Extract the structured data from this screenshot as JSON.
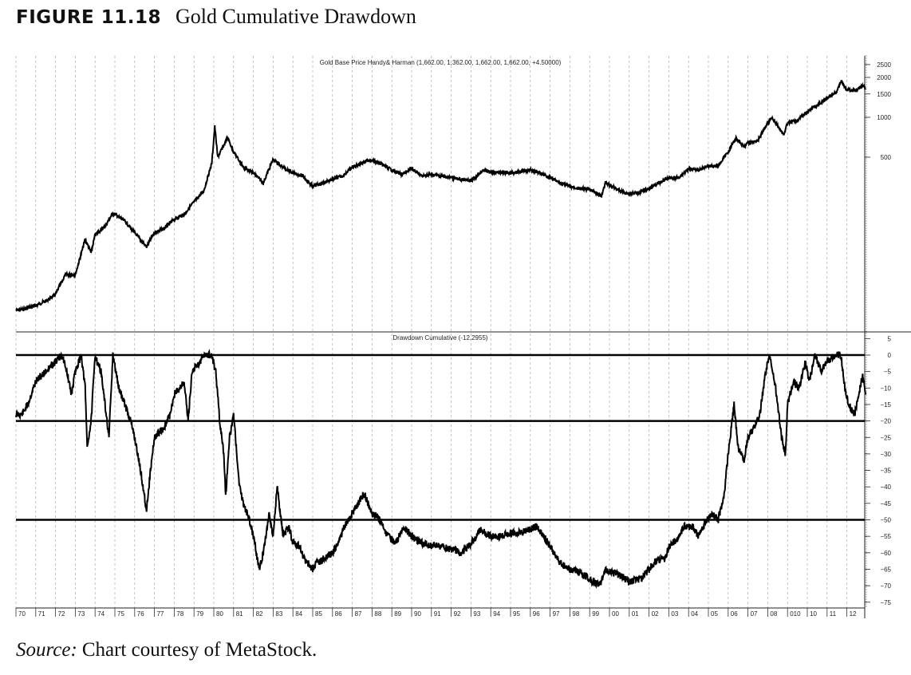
{
  "figure": {
    "number": "FIGURE 11.18",
    "title": "Gold Cumulative Drawdown"
  },
  "source": {
    "label": "Source:",
    "text": "Chart courtesy of MetaStock."
  },
  "chart_data": [
    {
      "type": "line",
      "title": "Gold Base Price Handy& Harman (1,662.00, 1,362.00, 1,662.00, 1,662.00, +4.50000)",
      "yscale": "log",
      "ylim": [
        30,
        2700
      ],
      "yticks": [
        2500,
        2000,
        1500,
        1000,
        500
      ],
      "grid": "vertical dashed per year",
      "series": [
        {
          "name": "Gold price",
          "x": [
            1970.0,
            1970.5,
            1971.0,
            1971.5,
            1972.0,
            1972.5,
            1973.0,
            1973.5,
            1973.8,
            1974.0,
            1974.5,
            1974.9,
            1975.5,
            1976.0,
            1976.6,
            1977.0,
            1977.5,
            1978.0,
            1978.5,
            1979.0,
            1979.5,
            1979.9,
            1980.05,
            1980.2,
            1980.7,
            1981.0,
            1981.5,
            1982.0,
            1982.5,
            1983.0,
            1983.5,
            1984.0,
            1984.5,
            1985.0,
            1985.5,
            1986.0,
            1986.5,
            1987.0,
            1987.9,
            1988.5,
            1989.0,
            1989.5,
            1990.0,
            1990.5,
            1991.0,
            1991.5,
            1992.0,
            1992.5,
            1993.0,
            1993.6,
            1994.0,
            1995.0,
            1996.0,
            1996.5,
            1997.0,
            1997.5,
            1998.0,
            1998.5,
            1999.0,
            1999.6,
            1999.8,
            2000.5,
            2001.0,
            2001.5,
            2002.0,
            2002.5,
            2003.0,
            2003.5,
            2004.0,
            2004.5,
            2005.0,
            2005.5,
            2006.0,
            2006.4,
            2006.8,
            2007.0,
            2007.5,
            2008.0,
            2008.2,
            2008.8,
            2009.0,
            2009.5,
            2010.0,
            2010.5,
            2011.0,
            2011.5,
            2011.7,
            2012.0,
            2012.5,
            2012.8,
            2012.95
          ],
          "y": [
            35,
            36,
            38,
            41,
            46,
            65,
            65,
            120,
            95,
            130,
            150,
            190,
            165,
            135,
            105,
            135,
            145,
            170,
            185,
            230,
            280,
            450,
            850,
            500,
            700,
            550,
            420,
            380,
            320,
            480,
            420,
            380,
            360,
            300,
            320,
            340,
            360,
            420,
            480,
            440,
            400,
            370,
            410,
            360,
            370,
            360,
            350,
            340,
            330,
            400,
            385,
            380,
            400,
            380,
            350,
            320,
            300,
            290,
            285,
            255,
            320,
            280,
            265,
            270,
            290,
            320,
            350,
            350,
            410,
            400,
            430,
            430,
            550,
            700,
            600,
            640,
            670,
            900,
            1000,
            740,
            900,
            950,
            1100,
            1230,
            1400,
            1550,
            1880,
            1600,
            1600,
            1750,
            1660
          ]
        }
      ]
    },
    {
      "type": "line",
      "title": "Drawdown Cumulative (-12.2955)",
      "ylim": [
        -77,
        6
      ],
      "yticks": [
        5,
        0,
        -5,
        -10,
        -15,
        -20,
        -25,
        -30,
        -35,
        -40,
        -45,
        -50,
        -55,
        -60,
        -65,
        -70,
        -75
      ],
      "reference_lines": [
        0,
        -20,
        -50
      ],
      "series": [
        {
          "name": "Drawdown",
          "x": [
            1970.0,
            1970.3,
            1970.6,
            1971.0,
            1971.5,
            1972.0,
            1972.3,
            1972.5,
            1972.8,
            1973.0,
            1973.3,
            1973.5,
            1973.6,
            1973.8,
            1974.0,
            1974.3,
            1974.5,
            1974.7,
            1974.9,
            1975.2,
            1975.5,
            1975.8,
            1976.0,
            1976.3,
            1976.6,
            1976.8,
            1977.0,
            1977.5,
            1977.8,
            1978.0,
            1978.5,
            1978.7,
            1978.9,
            1979.3,
            1979.5,
            1979.9,
            1980.1,
            1980.3,
            1980.5,
            1980.6,
            1980.8,
            1981.0,
            1981.3,
            1981.5,
            1981.8,
            1982.0,
            1982.3,
            1982.5,
            1982.8,
            1983.0,
            1983.2,
            1983.5,
            1983.8,
            1984.0,
            1984.3,
            1984.6,
            1985.0,
            1985.2,
            1985.5,
            1986.0,
            1986.3,
            1986.6,
            1987.0,
            1987.3,
            1987.6,
            1988.0,
            1988.4,
            1988.8,
            1989.2,
            1989.6,
            1990.0,
            1990.5,
            1991.0,
            1991.5,
            1992.0,
            1992.5,
            1992.9,
            1993.5,
            1994.0,
            1994.5,
            1995.0,
            1995.5,
            1996.0,
            1996.3,
            1996.8,
            1997.0,
            1997.5,
            1998.0,
            1998.5,
            1999.0,
            1999.5,
            1999.8,
            2000.2,
            2000.6,
            2001.0,
            2001.3,
            2001.6,
            2002.0,
            2002.4,
            2002.8,
            2003.0,
            2003.4,
            2003.8,
            2004.2,
            2004.5,
            2004.8,
            2005.2,
            2005.5,
            2005.8,
            2006.0,
            2006.3,
            2006.5,
            2006.8,
            2007.0,
            2007.3,
            2007.6,
            2007.9,
            2008.1,
            2008.4,
            2008.7,
            2008.9,
            2009.0,
            2009.3,
            2009.6,
            2009.9,
            2010.1,
            2010.4,
            2010.7,
            2011.0,
            2011.4,
            2011.7,
            2011.9,
            2012.1,
            2012.4,
            2012.6,
            2012.8,
            2012.95
          ],
          "y": [
            -18,
            -18,
            -15,
            -8,
            -5,
            -2,
            0,
            -3,
            -12,
            -5,
            0,
            -10,
            -28,
            -20,
            0,
            -5,
            -15,
            -25,
            0,
            -10,
            -15,
            -20,
            -25,
            -35,
            -47,
            -35,
            -25,
            -22,
            -18,
            -12,
            -8,
            -20,
            -5,
            -2,
            0,
            0,
            -5,
            -20,
            -30,
            -43,
            -25,
            -18,
            -40,
            -45,
            -50,
            -55,
            -65,
            -60,
            -48,
            -55,
            -40,
            -55,
            -52,
            -57,
            -58,
            -62,
            -65,
            -63,
            -62,
            -60,
            -57,
            -52,
            -48,
            -45,
            -42,
            -48,
            -50,
            -55,
            -57,
            -52,
            -55,
            -57,
            -58,
            -58,
            -59,
            -60,
            -58,
            -53,
            -55,
            -55,
            -54,
            -54,
            -53,
            -52,
            -56,
            -58,
            -63,
            -65,
            -66,
            -68,
            -70,
            -65,
            -66,
            -67,
            -69,
            -68,
            -68,
            -65,
            -62,
            -62,
            -58,
            -56,
            -52,
            -52,
            -55,
            -51,
            -48,
            -50,
            -42,
            -30,
            -15,
            -28,
            -32,
            -25,
            -22,
            -18,
            -5,
            0,
            -10,
            -25,
            -30,
            -15,
            -8,
            -10,
            -2,
            -8,
            0,
            -5,
            -2,
            0,
            0,
            -10,
            -15,
            -18,
            -12,
            -6,
            -12
          ]
        }
      ]
    }
  ],
  "x_axis": {
    "labels": [
      "70",
      "71",
      "72",
      "73",
      "74",
      "75",
      "76",
      "77",
      "78",
      "79",
      "80",
      "81",
      "82",
      "83",
      "84",
      "85",
      "86",
      "87",
      "88",
      "89",
      "90",
      "91",
      "92",
      "93",
      "94",
      "95",
      "96",
      "97",
      "98",
      "99",
      "00",
      "01",
      "02",
      "03",
      "04",
      "05",
      "06",
      "07",
      "08",
      "010",
      "10",
      "11",
      "12"
    ]
  }
}
